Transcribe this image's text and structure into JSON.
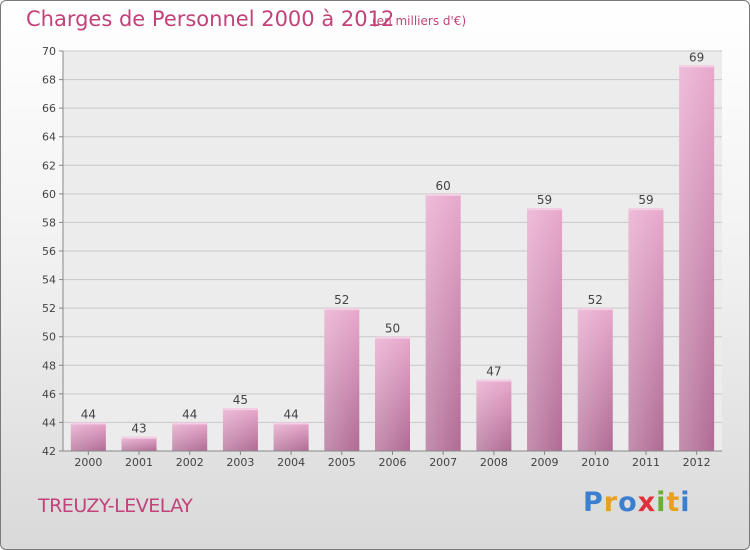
{
  "title": "Charges de Personnel 2000 à 2012",
  "subtitle": "(en milliers d'€)",
  "commune": "TREUZY-LEVELAY",
  "logo": {
    "letters": [
      "P",
      "r",
      "o",
      "x",
      "i",
      "t",
      "i"
    ],
    "colors": [
      "#3a7fd0",
      "#e8a020",
      "#3a7fd0",
      "#e0303a",
      "#6ab030",
      "#e8a020",
      "#3a7fd0"
    ]
  },
  "chart_data": {
    "type": "bar",
    "title": "Charges de Personnel 2000 à 2012",
    "subtitle": "(en milliers d'€)",
    "categories": [
      "2000",
      "2001",
      "2002",
      "2003",
      "2004",
      "2005",
      "2006",
      "2007",
      "2008",
      "2009",
      "2010",
      "2011",
      "2012"
    ],
    "values": [
      44,
      43,
      44,
      45,
      44,
      52,
      50,
      60,
      47,
      59,
      52,
      59,
      69
    ],
    "ylim": [
      42,
      70
    ],
    "yticks": [
      42,
      44,
      46,
      48,
      50,
      52,
      54,
      56,
      58,
      60,
      62,
      64,
      66,
      68,
      70
    ],
    "grid": true,
    "bar_color": "#d890b8"
  }
}
